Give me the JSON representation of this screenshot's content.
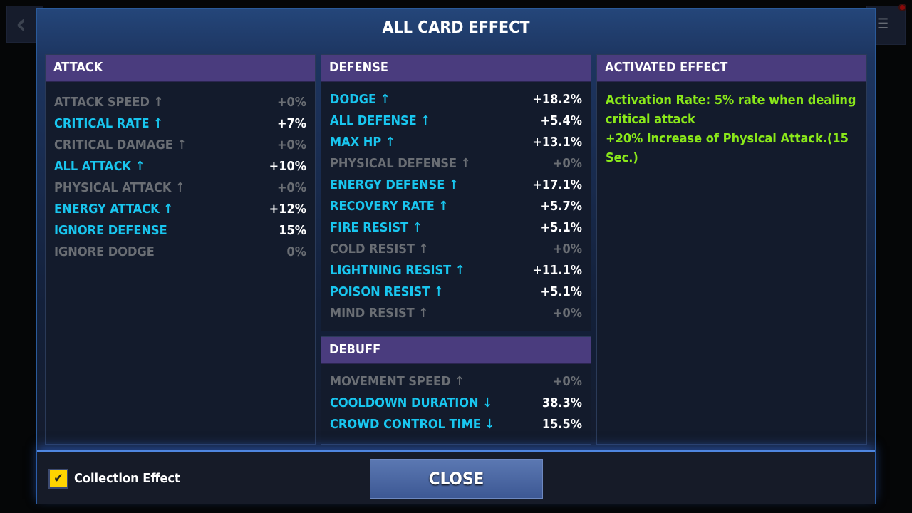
{
  "nav": {
    "back_icon": "‹",
    "menu_icon": "☰"
  },
  "title": "ALL CARD EFFECT",
  "attack": {
    "title": "ATTACK",
    "rows": [
      {
        "label": "ATTACK SPEED ↑",
        "value": "+0%",
        "active": false
      },
      {
        "label": "CRITICAL RATE ↑",
        "value": "+7%",
        "active": true
      },
      {
        "label": "CRITICAL DAMAGE ↑",
        "value": "+0%",
        "active": false
      },
      {
        "label": "ALL ATTACK ↑",
        "value": "+10%",
        "active": true
      },
      {
        "label": "PHYSICAL ATTACK ↑",
        "value": "+0%",
        "active": false
      },
      {
        "label": "ENERGY ATTACK ↑",
        "value": "+12%",
        "active": true
      },
      {
        "label": "IGNORE DEFENSE",
        "value": "15%",
        "active": true
      },
      {
        "label": "IGNORE DODGE",
        "value": "0%",
        "active": false
      }
    ]
  },
  "defense": {
    "title": "DEFENSE",
    "rows": [
      {
        "label": "DODGE ↑",
        "value": "+18.2%",
        "active": true
      },
      {
        "label": "ALL DEFENSE ↑",
        "value": "+5.4%",
        "active": true
      },
      {
        "label": "MAX HP ↑",
        "value": "+13.1%",
        "active": true
      },
      {
        "label": "PHYSICAL DEFENSE ↑",
        "value": "+0%",
        "active": false
      },
      {
        "label": "ENERGY DEFENSE ↑",
        "value": "+17.1%",
        "active": true
      },
      {
        "label": "RECOVERY RATE ↑",
        "value": "+5.7%",
        "active": true
      },
      {
        "label": "FIRE RESIST ↑",
        "value": "+5.1%",
        "active": true
      },
      {
        "label": "COLD RESIST ↑",
        "value": "+0%",
        "active": false
      },
      {
        "label": "LIGHTNING RESIST ↑",
        "value": "+11.1%",
        "active": true
      },
      {
        "label": "POISON RESIST ↑",
        "value": "+5.1%",
        "active": true
      },
      {
        "label": "MIND RESIST ↑",
        "value": "+0%",
        "active": false
      }
    ]
  },
  "debuff": {
    "title": "DEBUFF",
    "rows": [
      {
        "label": "MOVEMENT SPEED ↑",
        "value": "+0%",
        "active": false
      },
      {
        "label": "COOLDOWN DURATION ↓",
        "value": "38.3%",
        "active": true
      },
      {
        "label": "CROWD CONTROL TIME ↓",
        "value": "15.5%",
        "active": true
      }
    ]
  },
  "activated": {
    "title": "ACTIVATED EFFECT",
    "lines": [
      "Activation Rate: 5% rate when dealing critical attack",
      "+20% increase of Physical Attack.(15 Sec.)"
    ]
  },
  "footer": {
    "collection_label": "Collection Effect",
    "collection_checked": true,
    "check_icon": "✔",
    "close_label": "CLOSE"
  },
  "colors": {
    "active": "#19c6ef",
    "inactive": "#6a6e74",
    "effect": "#8ae81a",
    "header": "#4a3c7e",
    "checkbox": "#ffd400"
  }
}
